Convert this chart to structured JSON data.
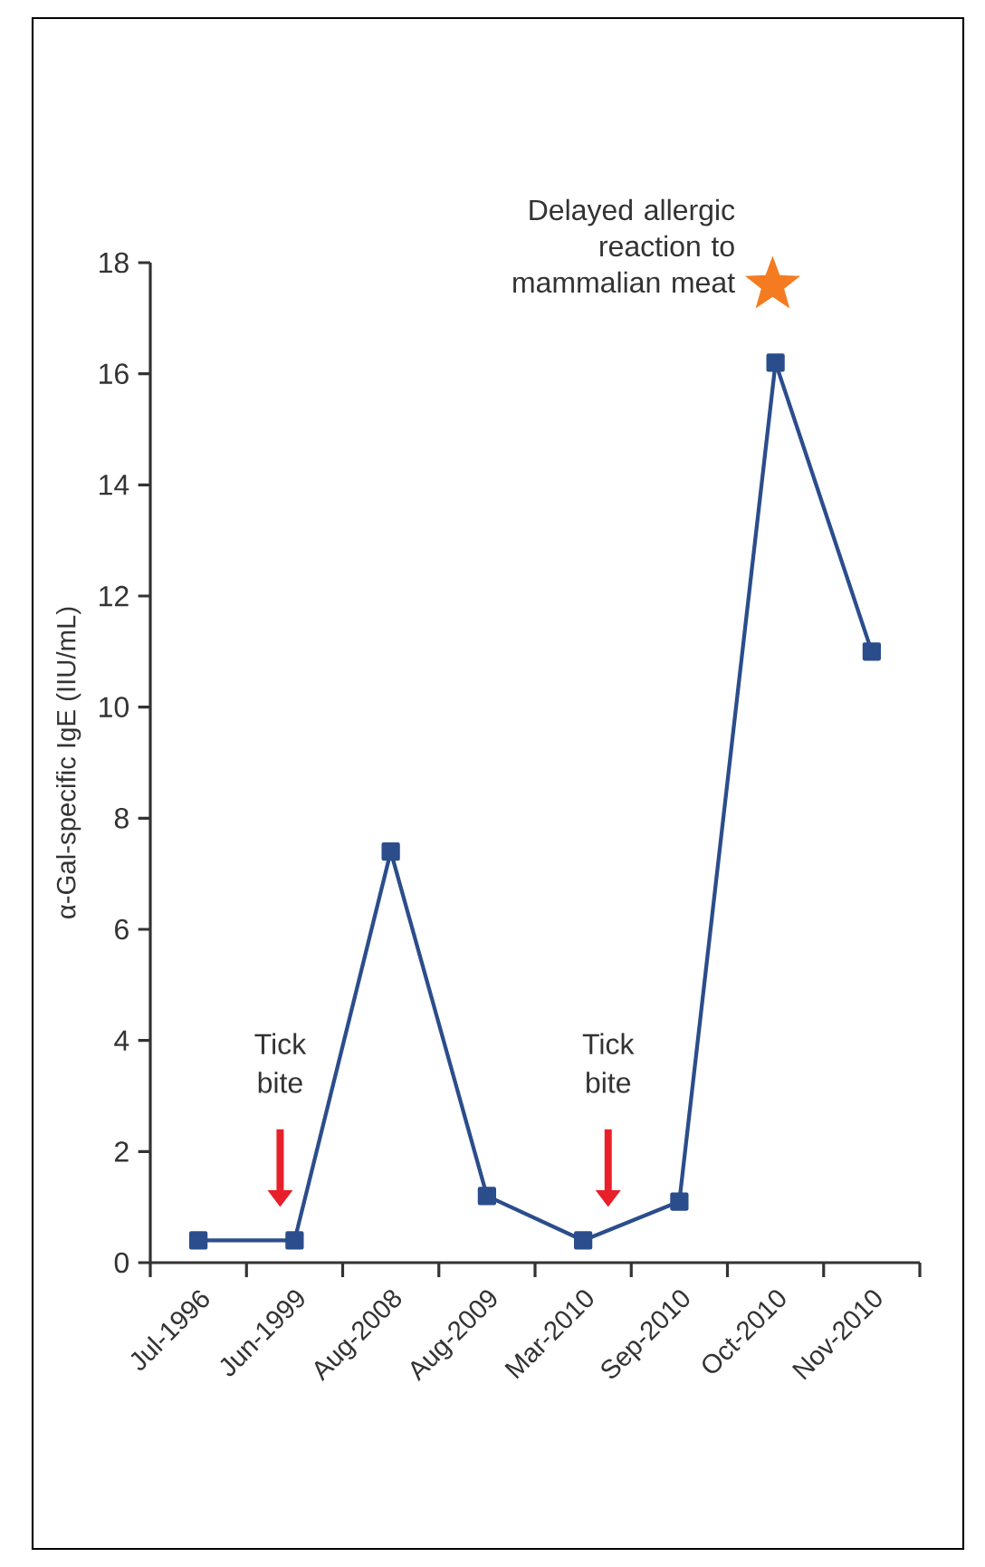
{
  "chart_data": {
    "type": "line",
    "ylabel": "α-Gal-specific IgE (IIU/mL)",
    "categories": [
      "Jul-1996",
      "Jun-1999",
      "Aug-2008",
      "Aug-2009",
      "Mar-2010",
      "Sep-2010",
      "Oct-2010",
      "Nov-2010"
    ],
    "values": [
      0.4,
      0.4,
      7.4,
      1.2,
      0.4,
      1.1,
      16.2,
      11.0
    ],
    "color": "#2b4d8c",
    "marker": "square",
    "line_style": "solid",
    "ylim": [
      0,
      18
    ],
    "yticks": [
      0,
      2,
      4,
      6,
      8,
      10,
      12,
      14,
      16,
      18
    ],
    "annotations": [
      "Tick bite",
      "Tick bite",
      "Delayed allergic reaction to mammalian meat"
    ]
  }
}
